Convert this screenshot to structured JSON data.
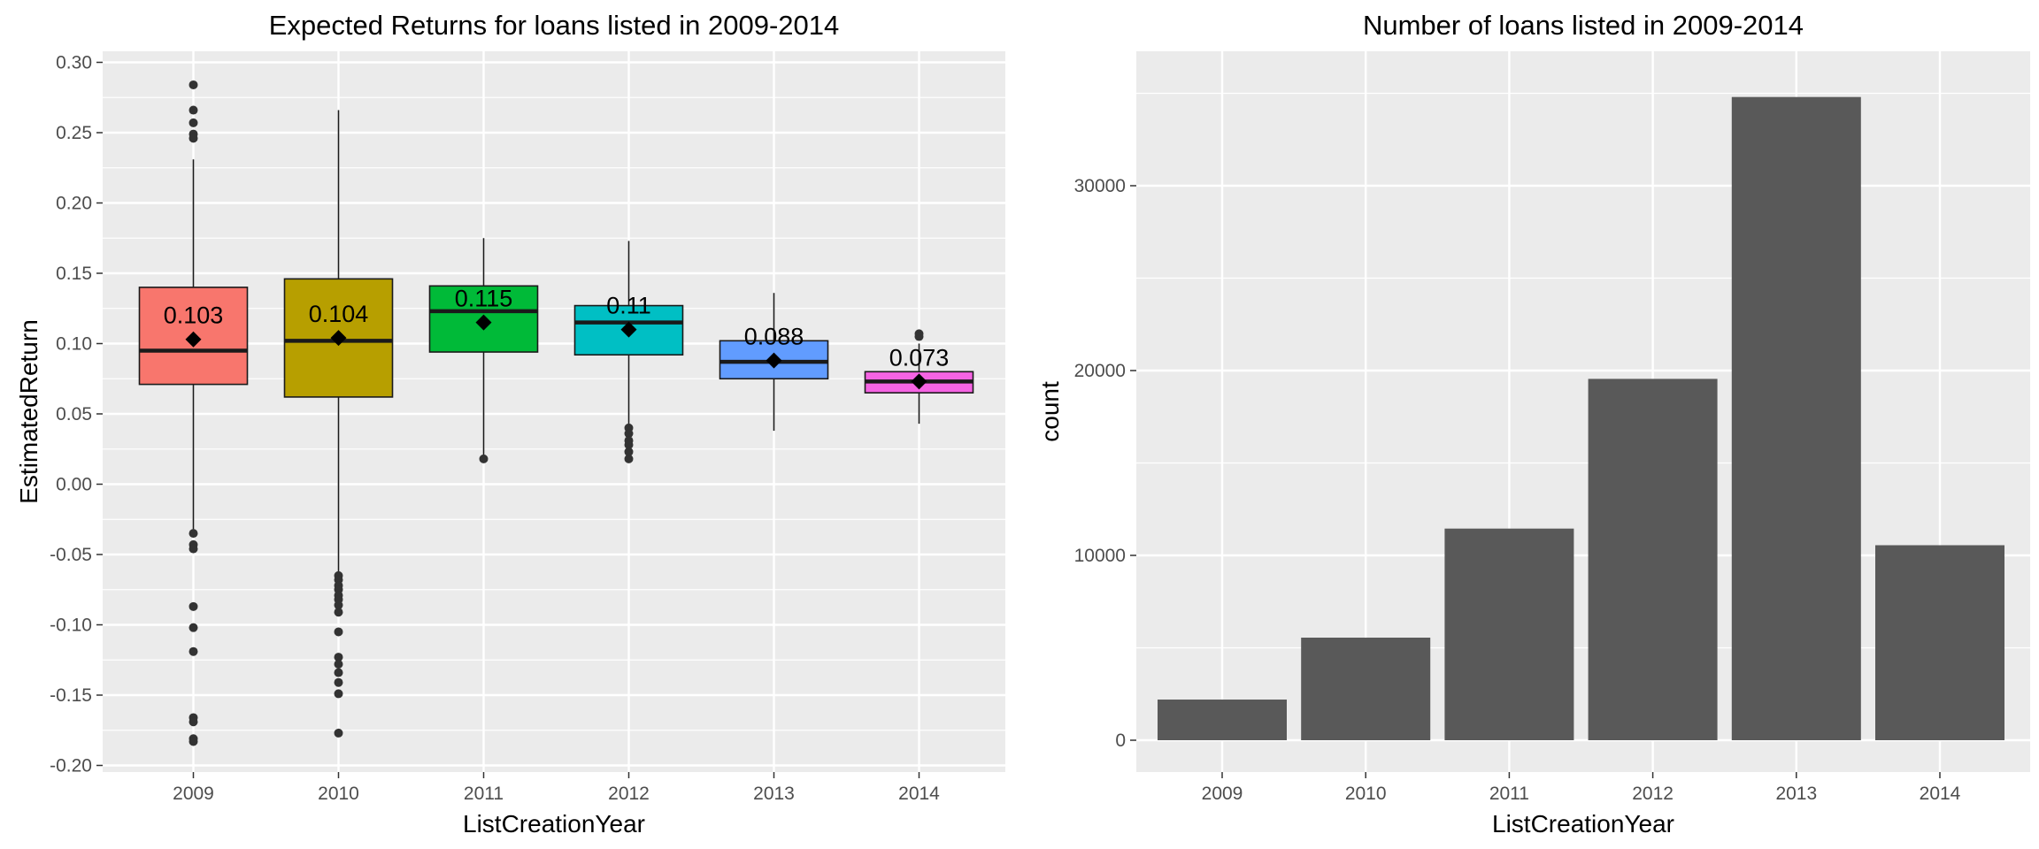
{
  "chart_data": [
    {
      "type": "box",
      "title": "Expected Returns for loans listed in 2009-2014",
      "xlabel": "ListCreationYear",
      "ylabel": "EstimatedReturn",
      "ylim": [
        -0.2,
        0.3
      ],
      "yticks": [
        -0.2,
        -0.15,
        -0.1,
        -0.05,
        0.0,
        0.05,
        0.1,
        0.15,
        0.2,
        0.25,
        0.3
      ],
      "ytick_labels": [
        "-0.20",
        "-0.15",
        "-0.10",
        "-0.05",
        "0.00",
        "0.05",
        "0.10",
        "0.15",
        "0.20",
        "0.25",
        "0.30"
      ],
      "grid": true,
      "categories": [
        "2009",
        "2010",
        "2011",
        "2012",
        "2013",
        "2014"
      ],
      "boxes": [
        {
          "category": "2009",
          "color": "#F8766D",
          "q1": 0.071,
          "median": 0.095,
          "q3": 0.14,
          "whisker_low": -0.032,
          "whisker_high": 0.231,
          "mean": 0.103,
          "mean_label": "0.103",
          "outliers": [
            0.284,
            0.266,
            0.257,
            0.249,
            0.246,
            -0.035,
            -0.043,
            -0.046,
            -0.087,
            -0.102,
            -0.119,
            -0.166,
            -0.169,
            -0.181,
            -0.183
          ]
        },
        {
          "category": "2010",
          "color": "#B79F00",
          "q1": 0.062,
          "median": 0.102,
          "q3": 0.146,
          "whisker_low": -0.063,
          "whisker_high": 0.266,
          "mean": 0.104,
          "mean_label": "0.104",
          "outliers": [
            -0.065,
            -0.068,
            -0.072,
            -0.075,
            -0.079,
            -0.082,
            -0.086,
            -0.091,
            -0.105,
            -0.123,
            -0.128,
            -0.134,
            -0.141,
            -0.149,
            -0.177
          ]
        },
        {
          "category": "2011",
          "color": "#00BA38",
          "q1": 0.094,
          "median": 0.123,
          "q3": 0.141,
          "whisker_low": 0.018,
          "whisker_high": 0.175,
          "mean": 0.115,
          "mean_label": "0.115",
          "outliers": [
            0.018
          ]
        },
        {
          "category": "2012",
          "color": "#00BFC4",
          "q1": 0.092,
          "median": 0.115,
          "q3": 0.127,
          "whisker_low": 0.041,
          "whisker_high": 0.173,
          "mean": 0.11,
          "mean_label": "0.11",
          "outliers": [
            0.04,
            0.036,
            0.031,
            0.028,
            0.023,
            0.018
          ]
        },
        {
          "category": "2013",
          "color": "#619CFF",
          "q1": 0.075,
          "median": 0.087,
          "q3": 0.102,
          "whisker_low": 0.038,
          "whisker_high": 0.136,
          "mean": 0.088,
          "mean_label": "0.088",
          "outliers": []
        },
        {
          "category": "2014",
          "color": "#F564E3",
          "q1": 0.065,
          "median": 0.073,
          "q3": 0.08,
          "whisker_low": 0.043,
          "whisker_high": 0.1,
          "mean": 0.073,
          "mean_label": "0.073",
          "outliers": [
            0.107,
            0.105
          ]
        }
      ]
    },
    {
      "type": "bar",
      "title": "Number of loans listed in 2009-2014",
      "xlabel": "ListCreationYear",
      "ylabel": "count",
      "ylim": [
        0,
        36800
      ],
      "yticks": [
        0,
        10000,
        20000,
        30000
      ],
      "ytick_labels": [
        "0",
        "10000",
        "20000",
        "30000"
      ],
      "grid": true,
      "bar_color": "#595959",
      "categories": [
        "2009",
        "2010",
        "2011",
        "2012",
        "2013",
        "2014"
      ],
      "values": [
        2200,
        5550,
        11450,
        19550,
        34800,
        10550
      ]
    }
  ]
}
